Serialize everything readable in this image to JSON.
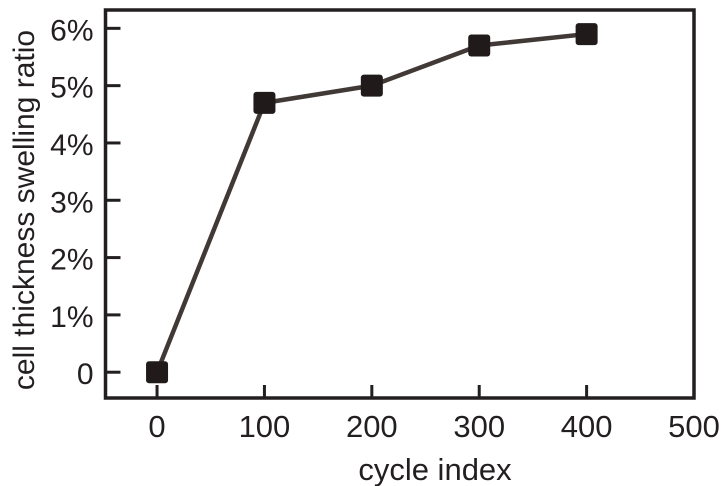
{
  "chart_data": {
    "type": "line",
    "title": "",
    "xlabel": "cycle index",
    "ylabel": "cell thickness swelling ratio",
    "x": [
      0,
      100,
      200,
      300,
      400
    ],
    "y": [
      0,
      4.7,
      5.0,
      5.7,
      5.9
    ],
    "y_unit": "%",
    "xlim": [
      -48,
      500
    ],
    "ylim": [
      -0.45,
      6.32
    ],
    "x_ticks": [
      0,
      100,
      200,
      300,
      400,
      500
    ],
    "x_tick_labels": [
      "0",
      "100",
      "200",
      "300",
      "400",
      "500"
    ],
    "y_ticks": [
      0,
      1,
      2,
      3,
      4,
      5,
      6
    ],
    "y_tick_labels": [
      "0",
      "1%",
      "2%",
      "3%",
      "4%",
      "5%",
      "6%"
    ],
    "grid": false,
    "legend": "none",
    "marker": "square",
    "line_style": "solid",
    "colors": {
      "axis": "#231f20",
      "text": "#231f20",
      "line": "#403936",
      "marker": "#201b1a",
      "background": "#ffffff"
    }
  }
}
